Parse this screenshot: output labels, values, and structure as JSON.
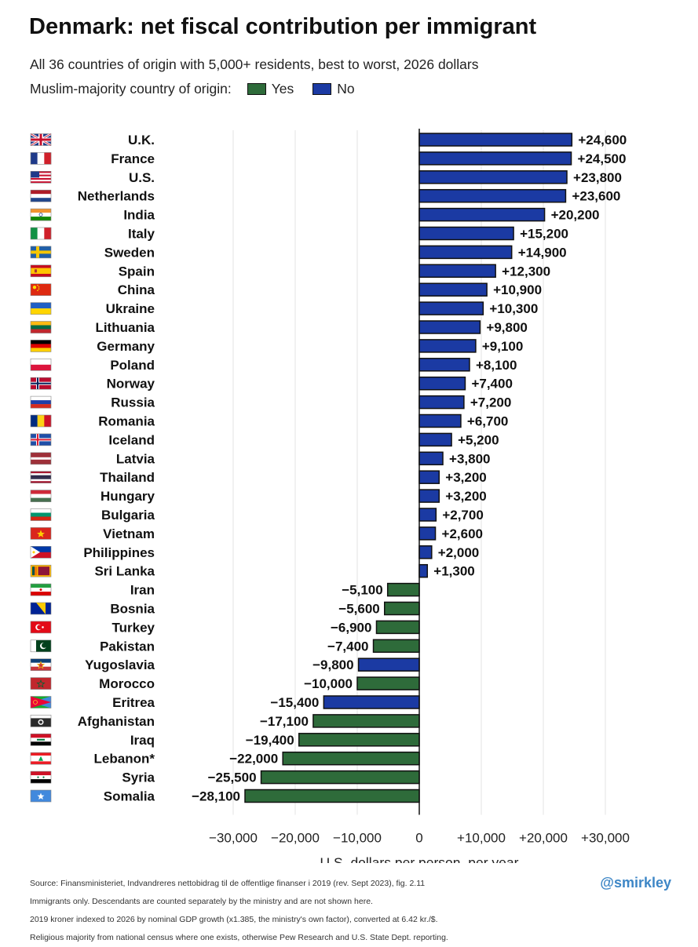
{
  "title": "Denmark: net fiscal contribution per immigrant",
  "subtitle": "All 36 countries of origin with 5,000+ residents, best to worst, 2026 dollars",
  "legend": {
    "label": "Muslim-majority country of origin:",
    "yes": "Yes",
    "no": "No"
  },
  "colors": {
    "yes": "#2e6b3a",
    "no": "#1b3aa3",
    "grid": "#e3e3e3",
    "axis": "#111111"
  },
  "chart_data": {
    "type": "bar",
    "orientation": "horizontal",
    "xlabel": "U.S. dollars per person, per year",
    "xlim": [
      -30000,
      30000
    ],
    "xticks": [
      -30000,
      -20000,
      -10000,
      0,
      10000,
      20000,
      30000
    ],
    "xtick_labels": [
      "−30,000",
      "−20,000",
      "−10,000",
      "0",
      "+10,000",
      "+20,000",
      "+30,000"
    ],
    "grid": "vertical",
    "categories": [
      "U.K.",
      "France",
      "U.S.",
      "Netherlands",
      "India",
      "Italy",
      "Sweden",
      "Spain",
      "China",
      "Ukraine",
      "Lithuania",
      "Germany",
      "Poland",
      "Norway",
      "Russia",
      "Romania",
      "Iceland",
      "Latvia",
      "Thailand",
      "Hungary",
      "Bulgaria",
      "Vietnam",
      "Philippines",
      "Sri Lanka",
      "Iran",
      "Bosnia",
      "Turkey",
      "Pakistan",
      "Yugoslavia",
      "Morocco",
      "Eritrea",
      "Afghanistan",
      "Iraq",
      "Lebanon*",
      "Syria",
      "Somalia"
    ],
    "values": [
      24600,
      24500,
      23800,
      23600,
      20200,
      15200,
      14900,
      12300,
      10900,
      10300,
      9800,
      9100,
      8100,
      7400,
      7200,
      6700,
      5200,
      3800,
      3200,
      3200,
      2700,
      2600,
      2000,
      1300,
      -5100,
      -5600,
      -6900,
      -7400,
      -9800,
      -10000,
      -15400,
      -17100,
      -19400,
      -22000,
      -25500,
      -28100
    ],
    "value_labels": [
      "+24,600",
      "+24,500",
      "+23,800",
      "+23,600",
      "+20,200",
      "+15,200",
      "+14,900",
      "+12,300",
      "+10,900",
      "+10,300",
      "+9,800",
      "+9,100",
      "+8,100",
      "+7,400",
      "+7,200",
      "+6,700",
      "+5,200",
      "+3,800",
      "+3,200",
      "+3,200",
      "+2,700",
      "+2,600",
      "+2,000",
      "+1,300",
      "−5,100",
      "−5,600",
      "−6,900",
      "−7,400",
      "−9,800",
      "−10,000",
      "−15,400",
      "−17,100",
      "−19,400",
      "−22,000",
      "−25,500",
      "−28,100"
    ],
    "muslim_majority": [
      false,
      false,
      false,
      false,
      false,
      false,
      false,
      false,
      false,
      false,
      false,
      false,
      false,
      false,
      false,
      false,
      false,
      false,
      false,
      false,
      false,
      false,
      false,
      false,
      true,
      true,
      true,
      true,
      false,
      true,
      false,
      true,
      true,
      true,
      true,
      true
    ],
    "flags": [
      "uk",
      "france",
      "us",
      "netherlands",
      "india",
      "italy",
      "sweden",
      "spain",
      "china",
      "ukraine",
      "lithuania",
      "germany",
      "poland",
      "norway",
      "russia",
      "romania",
      "iceland",
      "latvia",
      "thailand",
      "hungary",
      "bulgaria",
      "vietnam",
      "philippines",
      "sri-lanka",
      "iran",
      "bosnia",
      "turkey",
      "pakistan",
      "yugoslavia",
      "morocco",
      "eritrea",
      "afghanistan",
      "iraq",
      "lebanon",
      "syria",
      "somalia"
    ]
  },
  "footer": {
    "line1": "Source: Finansministeriet, Indvandreres nettobidrag til de offentlige finanser i 2019 (rev. Sept 2023), fig. 2.11",
    "line2": "Immigrants only. Descendants are counted separately by the ministry and are not shown here.",
    "line3": "2019 kroner indexed to 2026 by nominal GDP growth (x1.385, the ministry's own factor), converted at 6.42 kr./$.",
    "line4": "Religious majority from national census where one exists, otherwise Pew Research and U.S. State Dept. reporting."
  },
  "handle": "@smirkley"
}
